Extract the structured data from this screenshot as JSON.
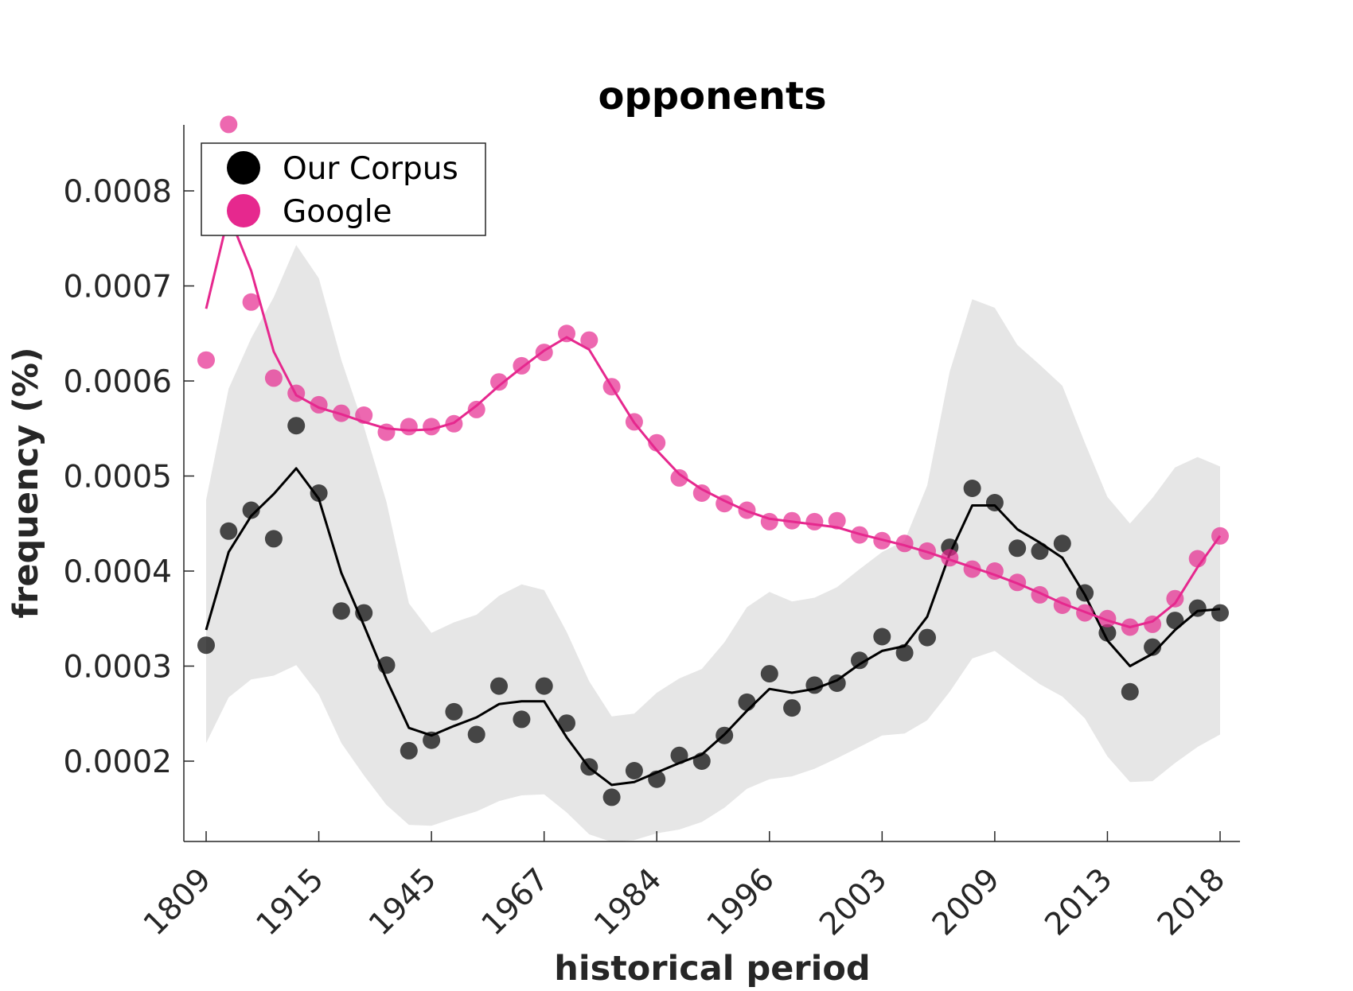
{
  "chart_data": {
    "type": "scatter",
    "title": "opponents",
    "xlabel": "historical period",
    "ylabel": "frequency (%)",
    "x_tick_labels": [
      "1809",
      "1915",
      "1945",
      "1967",
      "1984",
      "1996",
      "2003",
      "2009",
      "2013",
      "2018"
    ],
    "y_ticks": [
      0.0002,
      0.0003,
      0.0004,
      0.0005,
      0.0006,
      0.0007,
      0.0008
    ],
    "y_tick_labels": [
      "0.0002",
      "0.0003",
      "0.0004",
      "0.0005",
      "0.0006",
      "0.0007",
      "0.0008"
    ],
    "ylim": [
      0.000115,
      0.00087
    ],
    "grid": false,
    "legend_position": "top-left",
    "colors": {
      "corpus": "#000000",
      "google": "#e6288e",
      "band": "#e6e6e6"
    },
    "series": [
      {
        "name": "Our Corpus",
        "points": [
          0.000322,
          0.000442,
          0.000464,
          0.000434,
          0.000553,
          0.000482,
          0.000358,
          0.000356,
          0.000301,
          0.000211,
          0.000222,
          0.000252,
          0.000228,
          0.000279,
          0.000244,
          0.000279,
          0.00024,
          0.000194,
          0.000162,
          0.00019,
          0.000181,
          0.000206,
          0.0002,
          0.000227,
          0.000262,
          0.000292,
          0.000256,
          0.00028,
          0.000282,
          0.000306,
          0.000331,
          0.000314,
          0.00033,
          0.000425,
          0.000487,
          0.000472,
          0.000424,
          0.000421,
          0.000429,
          0.000377,
          0.000335,
          0.000273,
          0.00032,
          0.000348,
          0.000361,
          0.000356
        ],
        "line": [
          0.000338,
          0.00042,
          0.000458,
          0.000481,
          0.000508,
          0.000476,
          0.000398,
          0.000343,
          0.000286,
          0.000235,
          0.000227,
          0.000237,
          0.000246,
          0.00026,
          0.000263,
          0.000263,
          0.000225,
          0.000193,
          0.000175,
          0.000178,
          0.000188,
          0.000198,
          0.000207,
          0.000228,
          0.000253,
          0.000276,
          0.000272,
          0.000276,
          0.000285,
          0.000302,
          0.000316,
          0.000321,
          0.000352,
          0.000418,
          0.000469,
          0.000469,
          0.000444,
          0.00043,
          0.000414,
          0.000375,
          0.000327,
          0.0003,
          0.000313,
          0.000338,
          0.000358,
          0.00036
        ],
        "band_upper": [
          0.000475,
          0.000592,
          0.000645,
          0.000688,
          0.000743,
          0.000708,
          0.000622,
          0.000552,
          0.000473,
          0.000366,
          0.000335,
          0.000346,
          0.000354,
          0.000374,
          0.000386,
          0.00038,
          0.000336,
          0.000284,
          0.000247,
          0.00025,
          0.000272,
          0.000287,
          0.000297,
          0.000325,
          0.000362,
          0.000378,
          0.000368,
          0.000372,
          0.000383,
          0.000402,
          0.00042,
          0.000432,
          0.00049,
          0.00061,
          0.000686,
          0.000677,
          0.000638,
          0.000617,
          0.000595,
          0.000535,
          0.000478,
          0.00045,
          0.000477,
          0.000509,
          0.00052,
          0.00051
        ],
        "band_lower": [
          0.000219,
          0.000267,
          0.000286,
          0.00029,
          0.000301,
          0.00027,
          0.000219,
          0.000185,
          0.000154,
          0.000133,
          0.000132,
          0.00014,
          0.000147,
          0.000158,
          0.000164,
          0.000165,
          0.000146,
          0.000123,
          0.000115,
          0.000117,
          0.000124,
          0.000128,
          0.000136,
          0.000151,
          0.000171,
          0.000181,
          0.000184,
          0.000192,
          0.000203,
          0.000215,
          0.000227,
          0.000229,
          0.000243,
          0.000273,
          0.000308,
          0.000316,
          0.000298,
          0.000281,
          0.000268,
          0.000245,
          0.000205,
          0.000178,
          0.000179,
          0.000198,
          0.000215,
          0.000228
        ]
      },
      {
        "name": "Google",
        "points": [
          0.000622,
          0.00087,
          0.000683,
          0.000603,
          0.000587,
          0.000575,
          0.000566,
          0.000564,
          0.000546,
          0.000552,
          0.000552,
          0.000555,
          0.00057,
          0.000599,
          0.000616,
          0.00063,
          0.00065,
          0.000643,
          0.000594,
          0.000557,
          0.000535,
          0.000498,
          0.000482,
          0.000471,
          0.000464,
          0.000452,
          0.000453,
          0.000452,
          0.000453,
          0.000438,
          0.000432,
          0.000429,
          0.000421,
          0.000414,
          0.000402,
          0.0004,
          0.000388,
          0.000375,
          0.000364,
          0.000356,
          0.00035,
          0.000341,
          0.000344,
          0.000371,
          0.000413,
          0.000437
        ],
        "line": [
          0.000676,
          0.000775,
          0.000716,
          0.000631,
          0.000585,
          0.000572,
          0.000565,
          0.000557,
          0.00055,
          0.000548,
          0.000549,
          0.000556,
          0.000574,
          0.000595,
          0.000614,
          0.000632,
          0.000646,
          0.000633,
          0.000594,
          0.000556,
          0.000527,
          0.000502,
          0.000486,
          0.000474,
          0.000463,
          0.000455,
          0.000452,
          0.000449,
          0.000446,
          0.000439,
          0.000433,
          0.000427,
          0.00042,
          0.000412,
          0.000404,
          0.000396,
          0.000387,
          0.000377,
          0.000366,
          0.000357,
          0.000348,
          0.000341,
          0.000347,
          0.000366,
          0.000404,
          0.000437
        ]
      }
    ]
  }
}
